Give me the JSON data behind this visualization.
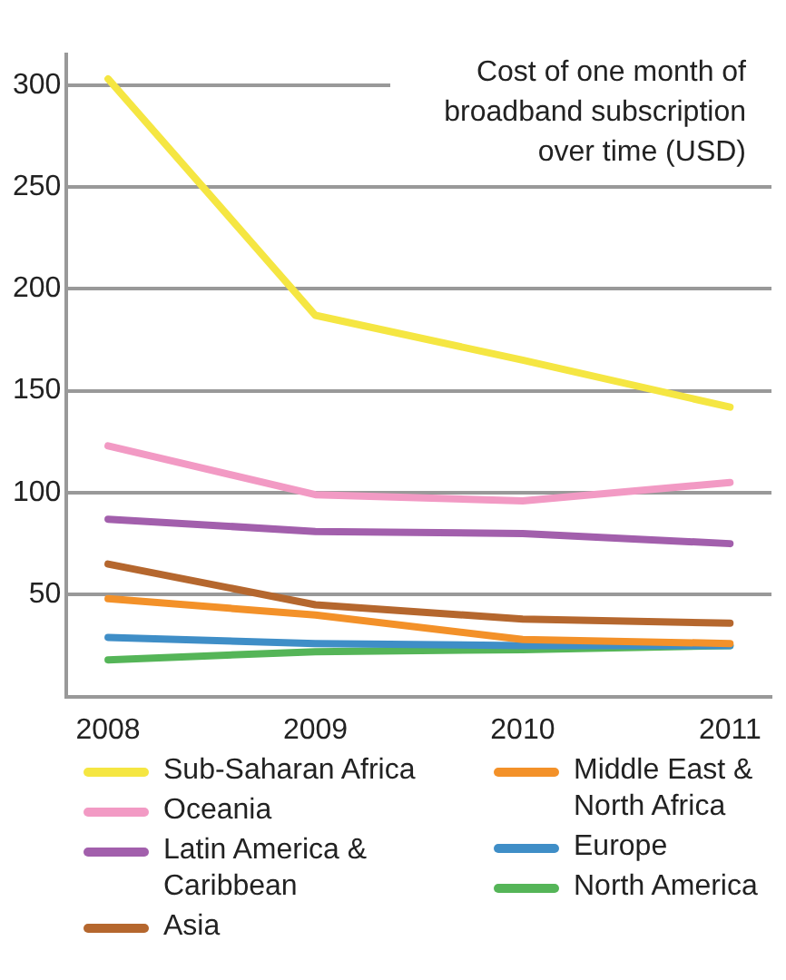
{
  "chart_data": {
    "type": "line",
    "title": "Cost of one month of broadband subscription over time (USD)",
    "x": [
      2008,
      2009,
      2010,
      2011
    ],
    "xlim": [
      2007.8,
      2011.2
    ],
    "xticks": [
      2008,
      2009,
      2010,
      2011
    ],
    "ylim": [
      0,
      315
    ],
    "yticks": [
      50,
      100,
      150,
      200,
      250,
      300
    ],
    "grid": "y",
    "legend": "bottom",
    "marker": "none",
    "line_style": "solid",
    "series": [
      {
        "name": "Sub-Saharan Africa",
        "color": "#f5e642",
        "values": [
          303,
          187,
          165,
          142
        ]
      },
      {
        "name": "Oceania",
        "color": "#f29ac4",
        "values": [
          123,
          99,
          96,
          105
        ]
      },
      {
        "name": "Latin America & Caribbean",
        "color": "#a25fac",
        "values": [
          87,
          81,
          80,
          75
        ]
      },
      {
        "name": "Asia",
        "color": "#b5672e",
        "values": [
          65,
          45,
          38,
          36
        ]
      },
      {
        "name": "Middle East & North Africa",
        "color": "#f39129",
        "values": [
          48,
          40,
          28,
          26
        ]
      },
      {
        "name": "Europe",
        "color": "#3f8ec7",
        "values": [
          29,
          26,
          25,
          25
        ]
      },
      {
        "name": "North America",
        "color": "#55b558",
        "values": [
          18,
          22,
          23,
          25
        ]
      }
    ]
  }
}
